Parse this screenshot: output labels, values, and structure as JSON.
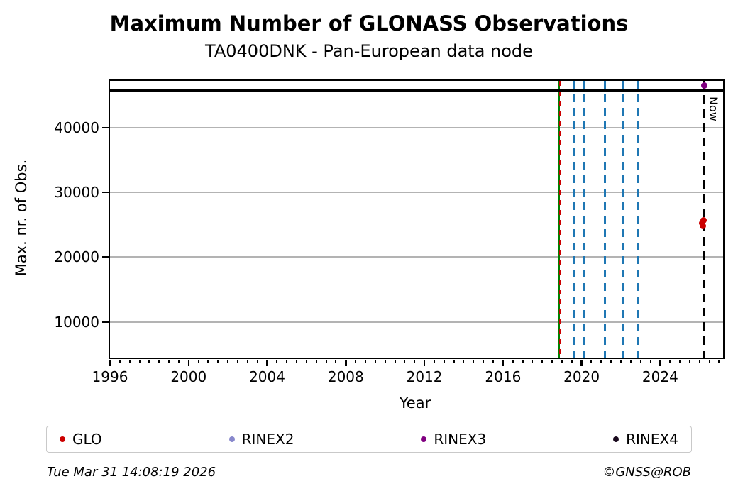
{
  "title": "Maximum Number of GLONASS Observations",
  "subtitle": "TA0400DNK - Pan-European data node",
  "footer": {
    "timestamp": "Tue Mar 31 14:08:19 2026",
    "credit": "©GNSS@ROB"
  },
  "legend": [
    {
      "label": "GLO",
      "color": "#cc0000"
    },
    {
      "label": "RINEX2",
      "color": "#8888cc"
    },
    {
      "label": "RINEX3",
      "color": "#800080"
    },
    {
      "label": "RINEX4",
      "color": "#1a0a1e"
    }
  ],
  "chart_data": {
    "type": "scatter",
    "title": "Maximum Number of GLONASS Observations",
    "subtitle": "TA0400DNK - Pan-European data node",
    "xlabel": "Year",
    "ylabel": "Max. nr. of Obs.",
    "xlim": [
      1996,
      2027.2
    ],
    "ylim": [
      4500,
      47200
    ],
    "x_major_ticks": [
      1996,
      2000,
      2004,
      2008,
      2012,
      2016,
      2020,
      2024
    ],
    "x_minor_step": 0.5,
    "y_major_ticks": [
      10000,
      20000,
      30000,
      40000
    ],
    "grid": "horizontal-major",
    "grid_color": "#b3b3b3",
    "hlines": [
      {
        "y": 45700,
        "color": "#000000",
        "style": "solid",
        "width": 3,
        "name": "max-obs-reference-line"
      }
    ],
    "vlines": [
      {
        "x": 2018.85,
        "color": "#008000",
        "style": "solid",
        "width": 3,
        "name": "event-line-green"
      },
      {
        "x": 2018.9,
        "color": "#cc0000",
        "style": "dashed",
        "width": 3,
        "name": "event-line-red-dashed"
      },
      {
        "x": 2019.65,
        "color": "#1f77b4",
        "style": "dashed",
        "width": 3,
        "name": "event-line-blue-1"
      },
      {
        "x": 2020.15,
        "color": "#1f77b4",
        "style": "dashed",
        "width": 3,
        "name": "event-line-blue-2"
      },
      {
        "x": 2021.2,
        "color": "#1f77b4",
        "style": "dashed",
        "width": 3,
        "name": "event-line-blue-3"
      },
      {
        "x": 2022.1,
        "color": "#1f77b4",
        "style": "dashed",
        "width": 3,
        "name": "event-line-blue-4"
      },
      {
        "x": 2022.9,
        "color": "#1f77b4",
        "style": "dashed",
        "width": 3,
        "name": "event-line-blue-5"
      },
      {
        "x": 2026.25,
        "color": "#000000",
        "style": "dashed",
        "width": 3,
        "name": "now-line",
        "label": "Now"
      }
    ],
    "now_label": "Now",
    "series": [
      {
        "name": "GLO",
        "color": "#cc0000",
        "marker_px": 9,
        "points": [
          [
            2026.2,
            25650
          ],
          [
            2026.13,
            25250
          ],
          [
            2026.18,
            24800
          ]
        ]
      },
      {
        "name": "RINEX2",
        "color": "#8888cc",
        "marker_px": 9,
        "points": []
      },
      {
        "name": "RINEX3",
        "color": "#800080",
        "marker_px": 9,
        "points": [
          [
            2026.25,
            46500
          ]
        ]
      },
      {
        "name": "RINEX4",
        "color": "#1a0a1e",
        "marker_px": 9,
        "points": []
      }
    ],
    "legend_position": "bottom",
    "legend_entries": [
      "GLO",
      "RINEX2",
      "RINEX3",
      "RINEX4"
    ]
  }
}
